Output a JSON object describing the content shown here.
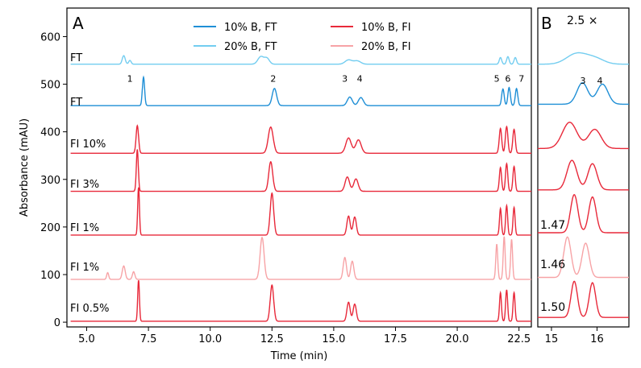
{
  "chart_data": [
    {
      "type": "line",
      "panel_label": "A",
      "xlabel": "Time (min)",
      "ylabel": "Absorbance (mAU)",
      "xlim": [
        4.2,
        23.0
      ],
      "ylim": [
        -10,
        660
      ],
      "xticks": [
        "5.0",
        "7.5",
        "10.0",
        "12.5",
        "15.0",
        "17.5",
        "20.0",
        "22.5"
      ],
      "yticks": [
        "0",
        "100",
        "200",
        "300",
        "400",
        "500",
        "600"
      ],
      "legend": {
        "placement": "top-center",
        "entries": [
          {
            "label": "10% B, FT",
            "color": "#1f8fd6"
          },
          {
            "label": "10% B, FI",
            "color": "#e8293a"
          },
          {
            "label": "20% B, FT",
            "color": "#73cdf0"
          },
          {
            "label": "20% B, FI",
            "color": "#f7a3a6"
          }
        ]
      },
      "series": [
        {
          "name": "20% B, FT",
          "trace_label": "FT",
          "color": "#73cdf0",
          "baseline": 542,
          "peaks": [
            [
              6.5,
              18,
              0.06
            ],
            [
              6.75,
              8,
              0.05
            ],
            [
              12.05,
              16,
              0.12
            ],
            [
              12.3,
              12,
              0.1
            ],
            [
              15.6,
              9,
              0.14
            ],
            [
              15.95,
              7,
              0.14
            ],
            [
              21.75,
              14,
              0.05
            ],
            [
              22.05,
              16,
              0.05
            ],
            [
              22.35,
              14,
              0.05
            ]
          ]
        },
        {
          "name": "10% B, FT",
          "trace_label": "FT",
          "color": "#1f8fd6",
          "baseline": 455,
          "peaks": [
            [
              7.3,
              60,
              0.045
            ],
            [
              12.6,
              36,
              0.09
            ],
            [
              15.65,
              18,
              0.1
            ],
            [
              16.1,
              17,
              0.1
            ],
            [
              21.85,
              35,
              0.05
            ],
            [
              22.1,
              38,
              0.05
            ],
            [
              22.4,
              36,
              0.05
            ]
          ]
        },
        {
          "name": "FI 10%",
          "trace_label": "FI 10%",
          "color": "#e8293a",
          "baseline": 355,
          "peaks": [
            [
              7.05,
              58,
              0.05
            ],
            [
              12.45,
              55,
              0.1
            ],
            [
              15.6,
              32,
              0.11
            ],
            [
              16.0,
              28,
              0.11
            ],
            [
              21.75,
              52,
              0.05
            ],
            [
              22.0,
              56,
              0.05
            ],
            [
              22.3,
              50,
              0.05
            ]
          ]
        },
        {
          "name": "FI 3%",
          "trace_label": "FI 3%",
          "color": "#e8293a",
          "baseline": 275,
          "peaks": [
            [
              7.05,
              88,
              0.04
            ],
            [
              12.45,
              62,
              0.08
            ],
            [
              15.55,
              30,
              0.09
            ],
            [
              15.9,
              26,
              0.09
            ],
            [
              21.75,
              50,
              0.045
            ],
            [
              22.0,
              58,
              0.045
            ],
            [
              22.3,
              52,
              0.045
            ]
          ]
        },
        {
          "name": "FI 1%",
          "trace_label": "FI 1%",
          "color": "#e8293a",
          "baseline": 183,
          "peaks": [
            [
              7.1,
              100,
              0.035
            ],
            [
              12.5,
              88,
              0.07
            ],
            [
              15.6,
              40,
              0.065
            ],
            [
              15.85,
              38,
              0.065
            ],
            [
              21.75,
              56,
              0.04
            ],
            [
              22.0,
              62,
              0.04
            ],
            [
              22.3,
              58,
              0.04
            ]
          ]
        },
        {
          "name": "FI 1% (20% B)",
          "trace_label": "FI 1%",
          "color": "#f7a3a6",
          "baseline": 90,
          "peaks": [
            [
              5.85,
              14,
              0.04
            ],
            [
              6.5,
              28,
              0.06
            ],
            [
              6.9,
              16,
              0.05
            ],
            [
              12.1,
              88,
              0.08
            ],
            [
              15.45,
              46,
              0.065
            ],
            [
              15.75,
              38,
              0.065
            ],
            [
              21.6,
              74,
              0.04
            ],
            [
              21.9,
              90,
              0.04
            ],
            [
              22.2,
              84,
              0.04
            ]
          ]
        },
        {
          "name": "FI 0.5%",
          "trace_label": "FI 0.5%",
          "color": "#e8293a",
          "baseline": 2,
          "peaks": [
            [
              7.1,
              86,
              0.035
            ],
            [
              12.5,
              76,
              0.07
            ],
            [
              15.6,
              40,
              0.065
            ],
            [
              15.85,
              36,
              0.065
            ],
            [
              21.75,
              60,
              0.04
            ],
            [
              22.0,
              66,
              0.04
            ],
            [
              22.3,
              60,
              0.04
            ]
          ]
        }
      ],
      "peak_annotations": [
        {
          "label": "1",
          "x": 6.75,
          "y": 505
        },
        {
          "label": "2",
          "x": 12.55,
          "y": 505
        },
        {
          "label": "3",
          "x": 15.45,
          "y": 505
        },
        {
          "label": "4",
          "x": 16.05,
          "y": 505
        },
        {
          "label": "5",
          "x": 21.6,
          "y": 505
        },
        {
          "label": "6",
          "x": 22.05,
          "y": 505
        },
        {
          "label": "7",
          "x": 22.6,
          "y": 505
        }
      ]
    },
    {
      "type": "line",
      "panel_label": "B",
      "zoom_label": "2.5 ×",
      "xlim": [
        14.7,
        16.7
      ],
      "ylim": [
        -10,
        660
      ],
      "xticks": [
        "15",
        "16"
      ],
      "series": [
        {
          "name": "20% B, FT",
          "color": "#73cdf0",
          "baseline": 542,
          "peaks": [
            [
              15.55,
              22,
              0.22
            ],
            [
              15.95,
              12,
              0.2
            ]
          ]
        },
        {
          "name": "10% B, FT",
          "color": "#1f8fd6",
          "baseline": 458,
          "peaks": [
            [
              15.68,
              45,
              0.12
            ],
            [
              16.12,
              42,
              0.12
            ]
          ],
          "annotations": [
            "3",
            "4"
          ]
        },
        {
          "name": "FI 10%",
          "color": "#e8293a",
          "baseline": 365,
          "peaks": [
            [
              15.4,
              55,
              0.16
            ],
            [
              15.95,
              40,
              0.14
            ]
          ]
        },
        {
          "name": "FI 3%",
          "color": "#e8293a",
          "baseline": 278,
          "peaks": [
            [
              15.45,
              62,
              0.11
            ],
            [
              15.9,
              55,
              0.1
            ]
          ]
        },
        {
          "name": "FI 1%",
          "color": "#e8293a",
          "baseline": 188,
          "resolution": "1.47",
          "peaks": [
            [
              15.5,
              80,
              0.08
            ],
            [
              15.9,
              75,
              0.08
            ]
          ]
        },
        {
          "name": "FI 1% (20% B)",
          "color": "#f7a3a6",
          "baseline": 94,
          "resolution": "1.46",
          "peaks": [
            [
              15.35,
              85,
              0.08
            ],
            [
              15.75,
              72,
              0.08
            ]
          ]
        },
        {
          "name": "FI 0.5%",
          "color": "#e8293a",
          "baseline": 10,
          "resolution": "1.50",
          "peaks": [
            [
              15.5,
              76,
              0.07
            ],
            [
              15.9,
              73,
              0.07
            ]
          ]
        }
      ]
    }
  ]
}
